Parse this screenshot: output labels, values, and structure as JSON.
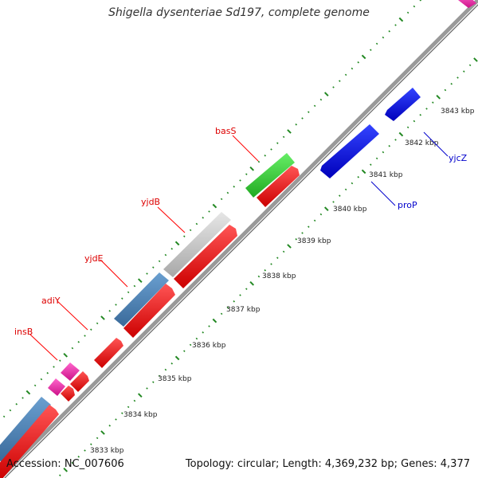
{
  "title": "Shigella dysenteriae Sd197, complete genome",
  "footer": {
    "accession": "Accession: NC_007606",
    "summary": "Topology: circular; Length: 4,369,232 bp; Genes: 4,377"
  },
  "ticks": [
    "3833 kbp",
    "3834 kbp",
    "3835 kbp",
    "3836 kbp",
    "3837 kbp",
    "3838 kbp",
    "3839 kbp",
    "3840 kbp",
    "3841 kbp",
    "3842 kbp",
    "3843 kbp"
  ],
  "genes_forward": [
    {
      "name": "insB",
      "color": "#dd0000"
    },
    {
      "name": "adiY",
      "color": "#dd0000"
    },
    {
      "name": "yjdE",
      "color": "#dd0000"
    },
    {
      "name": "yjdB",
      "color": "#dd0000"
    },
    {
      "name": "basS",
      "color": "#dd0000"
    }
  ],
  "genes_reverse": [
    {
      "name": "proP",
      "color": "#0000cc"
    },
    {
      "name": "yjcZ",
      "color": "#0000cc"
    }
  ],
  "colors": {
    "backbone": "#888888",
    "dotted_track": "#228822",
    "cds_forward": "#ff0000",
    "cds_reverse": "#0000ee",
    "cog_blue": "#4a7fb5",
    "cog_gray": "#c8c8c8",
    "cog_green": "#33cc33",
    "cog_pink": "#ee22aa"
  }
}
